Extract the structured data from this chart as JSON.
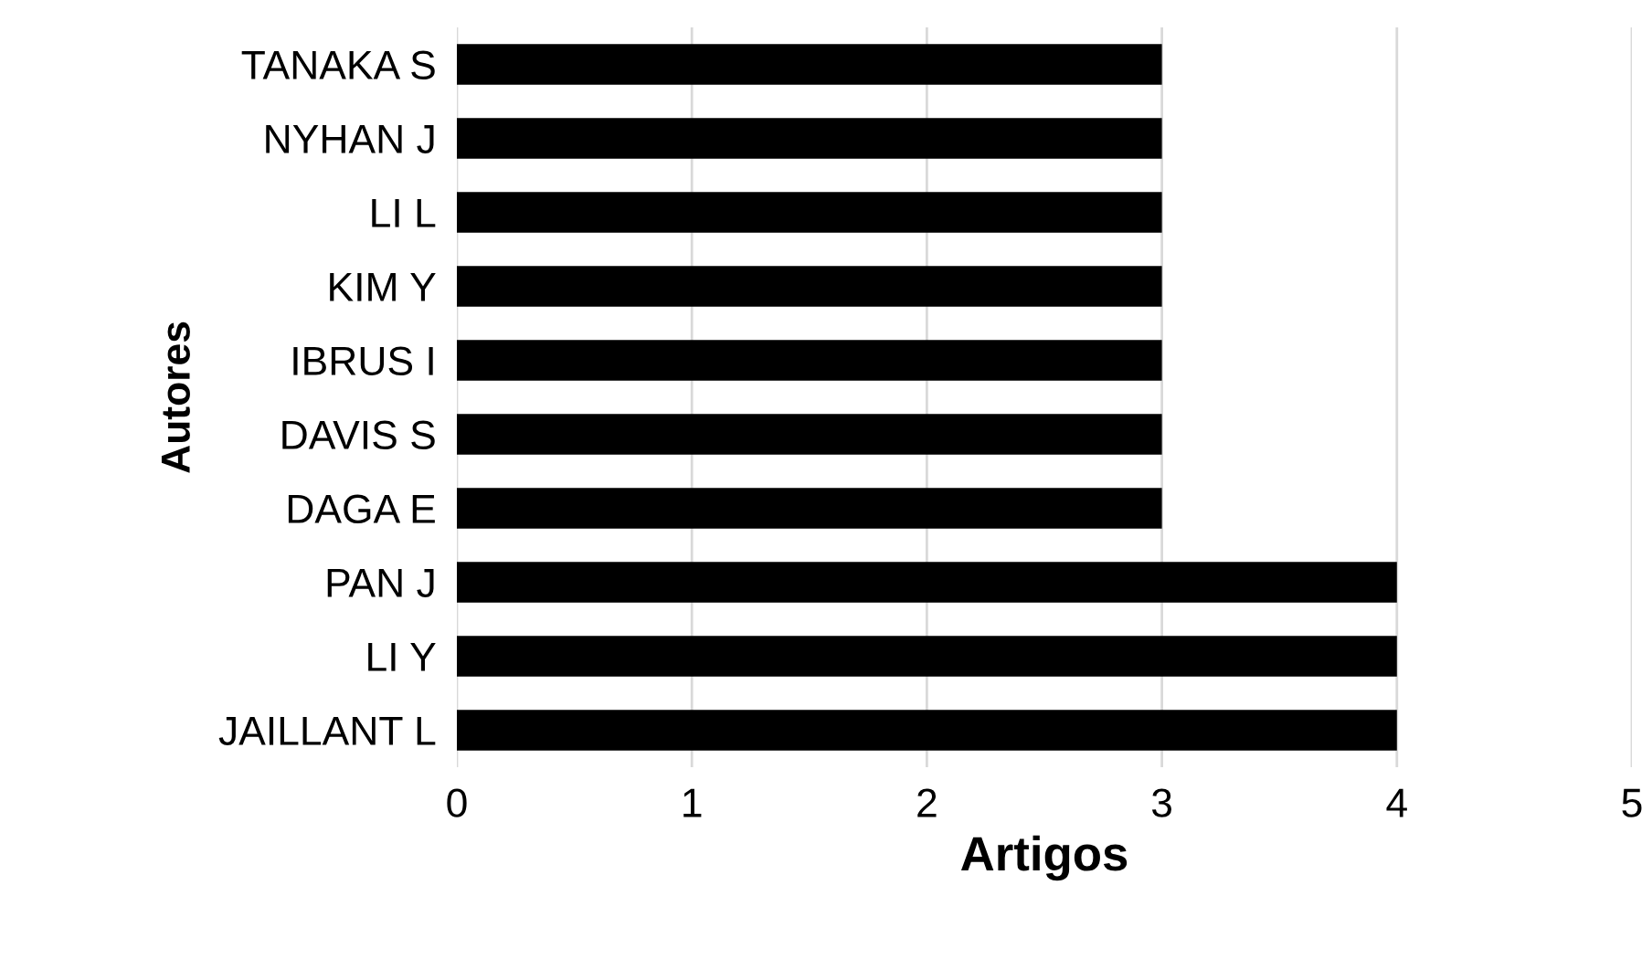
{
  "chart_data": {
    "type": "bar",
    "orientation": "horizontal",
    "xlabel": "Artigos",
    "ylabel": "Autores",
    "categories": [
      "TANAKA S",
      "NYHAN J",
      "LI L",
      "KIM Y",
      "IBRUS I",
      "DAVIS S",
      "DAGA E",
      "PAN J",
      "LI Y",
      "JAILLANT L"
    ],
    "values": [
      3,
      3,
      3,
      3,
      3,
      3,
      3,
      4,
      4,
      4
    ],
    "color": "#000000",
    "xlim": [
      0,
      5
    ],
    "xticks": [
      0,
      1,
      2,
      3,
      4,
      5
    ],
    "grid": "x",
    "legend": false
  }
}
